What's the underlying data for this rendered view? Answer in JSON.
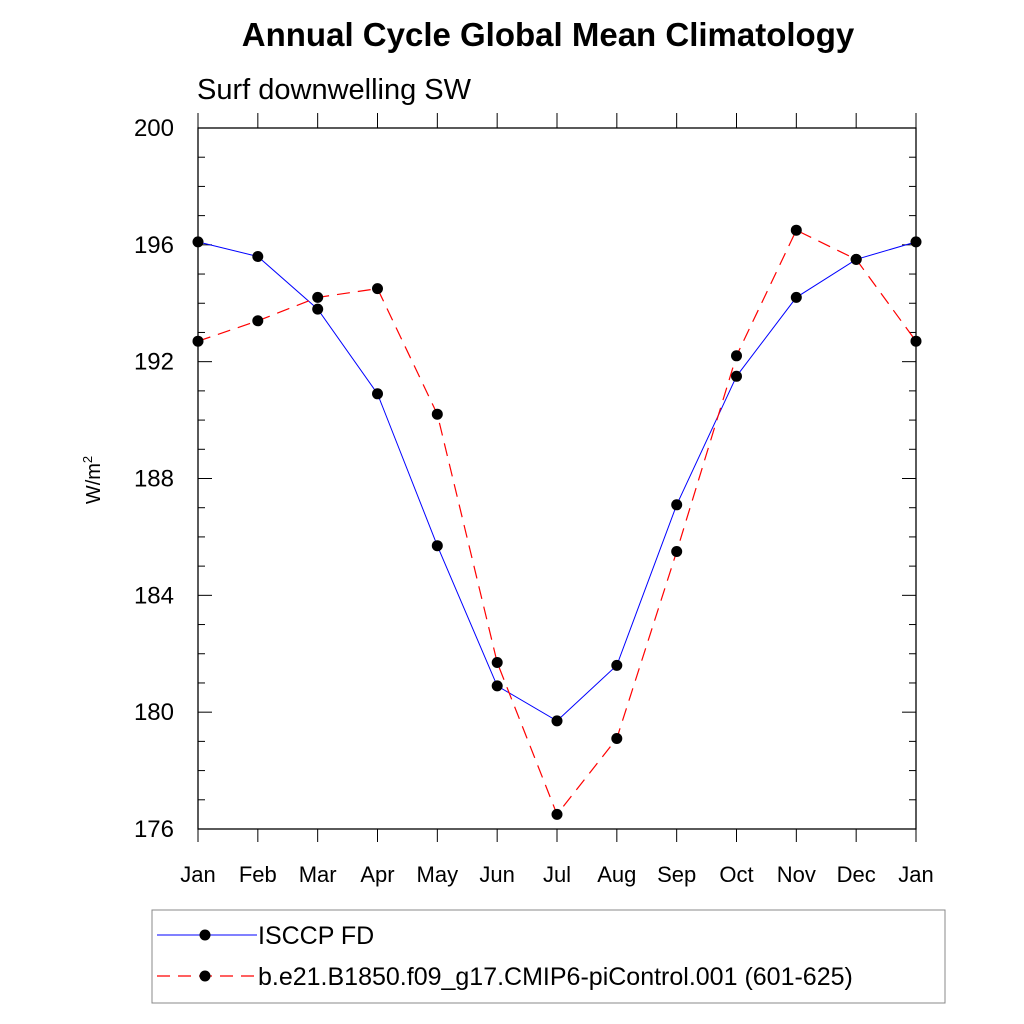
{
  "title": "Annual Cycle Global Mean Climatology",
  "subtitle": "Surf downwelling SW",
  "chart_data": {
    "type": "line",
    "title": "Annual Cycle Global Mean Climatology",
    "subtitle": "Surf downwelling SW",
    "ylabel_base": "W/m",
    "ylabel_sup": "2",
    "xlabel": "",
    "categories": [
      "Jan",
      "Feb",
      "Mar",
      "Apr",
      "May",
      "Jun",
      "Jul",
      "Aug",
      "Sep",
      "Oct",
      "Nov",
      "Dec",
      "Jan"
    ],
    "ylim": [
      176,
      200
    ],
    "yticks": [
      "200",
      "196",
      "192",
      "188",
      "184",
      "180",
      "176"
    ],
    "grid": false,
    "legend_position": "bottom",
    "series": [
      {
        "name": "ISCCP FD",
        "color": "#0000ff",
        "dash": "solid",
        "values": [
          196.1,
          195.6,
          193.8,
          190.9,
          185.7,
          180.9,
          179.7,
          181.6,
          187.1,
          191.5,
          194.2,
          195.5,
          196.1
        ]
      },
      {
        "name": "b.e21.B1850.f09_g17.CMIP6-piControl.001 (601-625)",
        "color": "#ff0000",
        "dash": "dashed",
        "values": [
          192.7,
          193.4,
          194.2,
          194.5,
          190.2,
          181.7,
          176.5,
          179.1,
          185.5,
          192.2,
          196.5,
          195.5,
          192.7
        ]
      }
    ]
  }
}
